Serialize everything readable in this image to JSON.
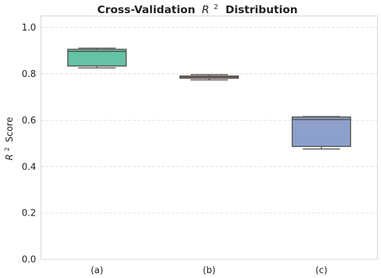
{
  "chart_data": {
    "type": "box",
    "title_prefix": "Cross-Validation",
    "title_math_base": "R",
    "title_math_exp": "2",
    "title_suffix": "Distribution",
    "ylabel_base": "R",
    "ylabel_exp": "2",
    "ylabel_suffix": "Score",
    "xlabel": "",
    "ylim": [
      0.0,
      1.05
    ],
    "yticks": [
      "0.0",
      "0.2",
      "0.4",
      "0.6",
      "0.8",
      "1.0"
    ],
    "grid": true,
    "categories": [
      "(a)",
      "(b)",
      "(c)"
    ],
    "boxes": [
      {
        "category": "(a)",
        "min": 0.826,
        "q1": 0.834,
        "median": 0.897,
        "q3": 0.906,
        "max": 0.911,
        "color": "#66c2a5"
      },
      {
        "category": "(b)",
        "min": 0.774,
        "q1": 0.781,
        "median": 0.786,
        "q3": 0.791,
        "max": 0.797,
        "color": "#fc8d62"
      },
      {
        "category": "(c)",
        "min": 0.476,
        "q1": 0.487,
        "median": 0.603,
        "q3": 0.614,
        "max": 0.616,
        "color": "#8da0cb"
      }
    ]
  }
}
